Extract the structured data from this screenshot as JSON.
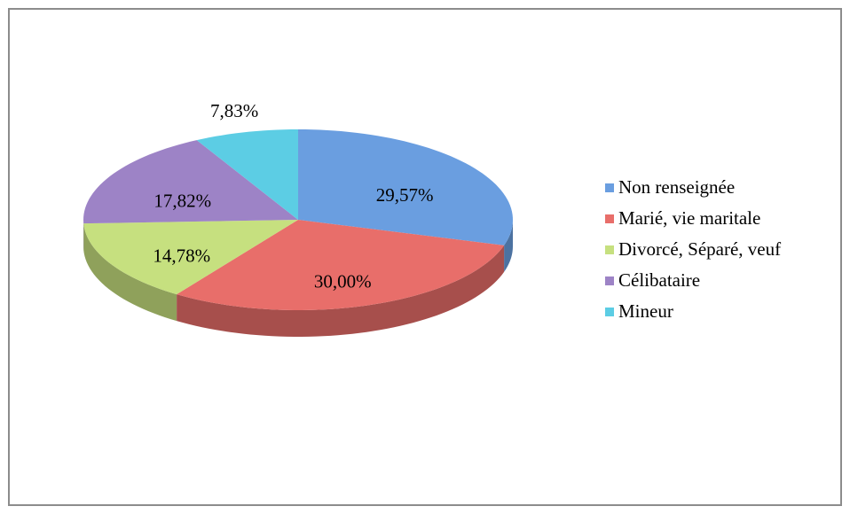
{
  "chart_data": {
    "type": "pie",
    "categories": [
      "Non renseignée",
      "Marié, vie maritale",
      "Divorcé, Séparé, veuf",
      "Célibataire",
      "Mineur"
    ],
    "values": [
      29.57,
      30.0,
      14.78,
      17.82,
      7.83
    ],
    "value_labels": [
      "29,57%",
      "30,00%",
      "14,78%",
      "17,82%",
      "7,83%"
    ],
    "colors": [
      "#6a9ee0",
      "#e86e6a",
      "#c6e07f",
      "#9d83c6",
      "#5ccde4"
    ],
    "legend": "right"
  }
}
